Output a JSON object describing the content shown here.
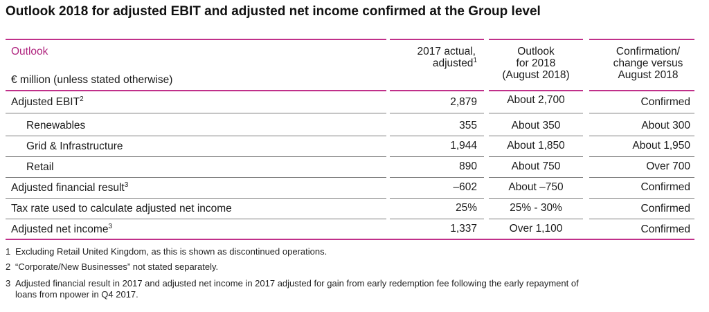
{
  "title": "Outlook 2018 for adjusted EBIT and adjusted net income confirmed at the Group level",
  "header": {
    "outlook": "Outlook",
    "unit": "€ million (unless stated otherwise)",
    "col1_line1": "2017 actual,",
    "col1_line2": "adjusted",
    "col1_sup": "1",
    "col2_line1": "Outlook",
    "col2_line2": "for 2018",
    "col2_line3": "(August 2018)",
    "col3_line1": "Confirmation/",
    "col3_line2": "change versus",
    "col3_line3": "August 2018"
  },
  "rows": [
    {
      "label": "Adjusted EBIT",
      "sup": "2",
      "actual": "2,879",
      "outlook": "About 2,700",
      "change": "Confirmed"
    },
    {
      "label": "Renewables",
      "sup": "",
      "actual": "355",
      "outlook": "About 350",
      "change": "About 300"
    },
    {
      "label": "Grid & Infrastructure",
      "sup": "",
      "actual": "1,944",
      "outlook": "About 1,850",
      "change": "About 1,950"
    },
    {
      "label": "Retail",
      "sup": "",
      "actual": "890",
      "outlook": "About 750",
      "change": "Over 700"
    },
    {
      "label": "Adjusted financial result",
      "sup": "3",
      "actual": "–602",
      "outlook": "About –750",
      "change": "Confirmed"
    },
    {
      "label": "Tax rate used to calculate adjusted net income",
      "sup": "",
      "actual": "25%",
      "outlook": "25% - 30%",
      "change": "Confirmed"
    },
    {
      "label": "Adjusted net income",
      "sup": "3",
      "actual": "1,337",
      "outlook": "Over 1,100",
      "change": "Confirmed"
    }
  ],
  "footnotes": [
    {
      "num": "1",
      "text": "Excluding Retail United Kingdom, as this is shown as discontinued operations."
    },
    {
      "num": "2",
      "text": "“Corporate/New Businesses” not stated separately."
    },
    {
      "num": "3",
      "text": "Adjusted financial result in 2017 and adjusted net income in 2017 adjusted for gain from early redemption fee following the early repayment of",
      "text2": "loans from npower in Q4 2017."
    }
  ],
  "colors": {
    "accent": "#c0308a",
    "rule": "#7a7a7a"
  }
}
